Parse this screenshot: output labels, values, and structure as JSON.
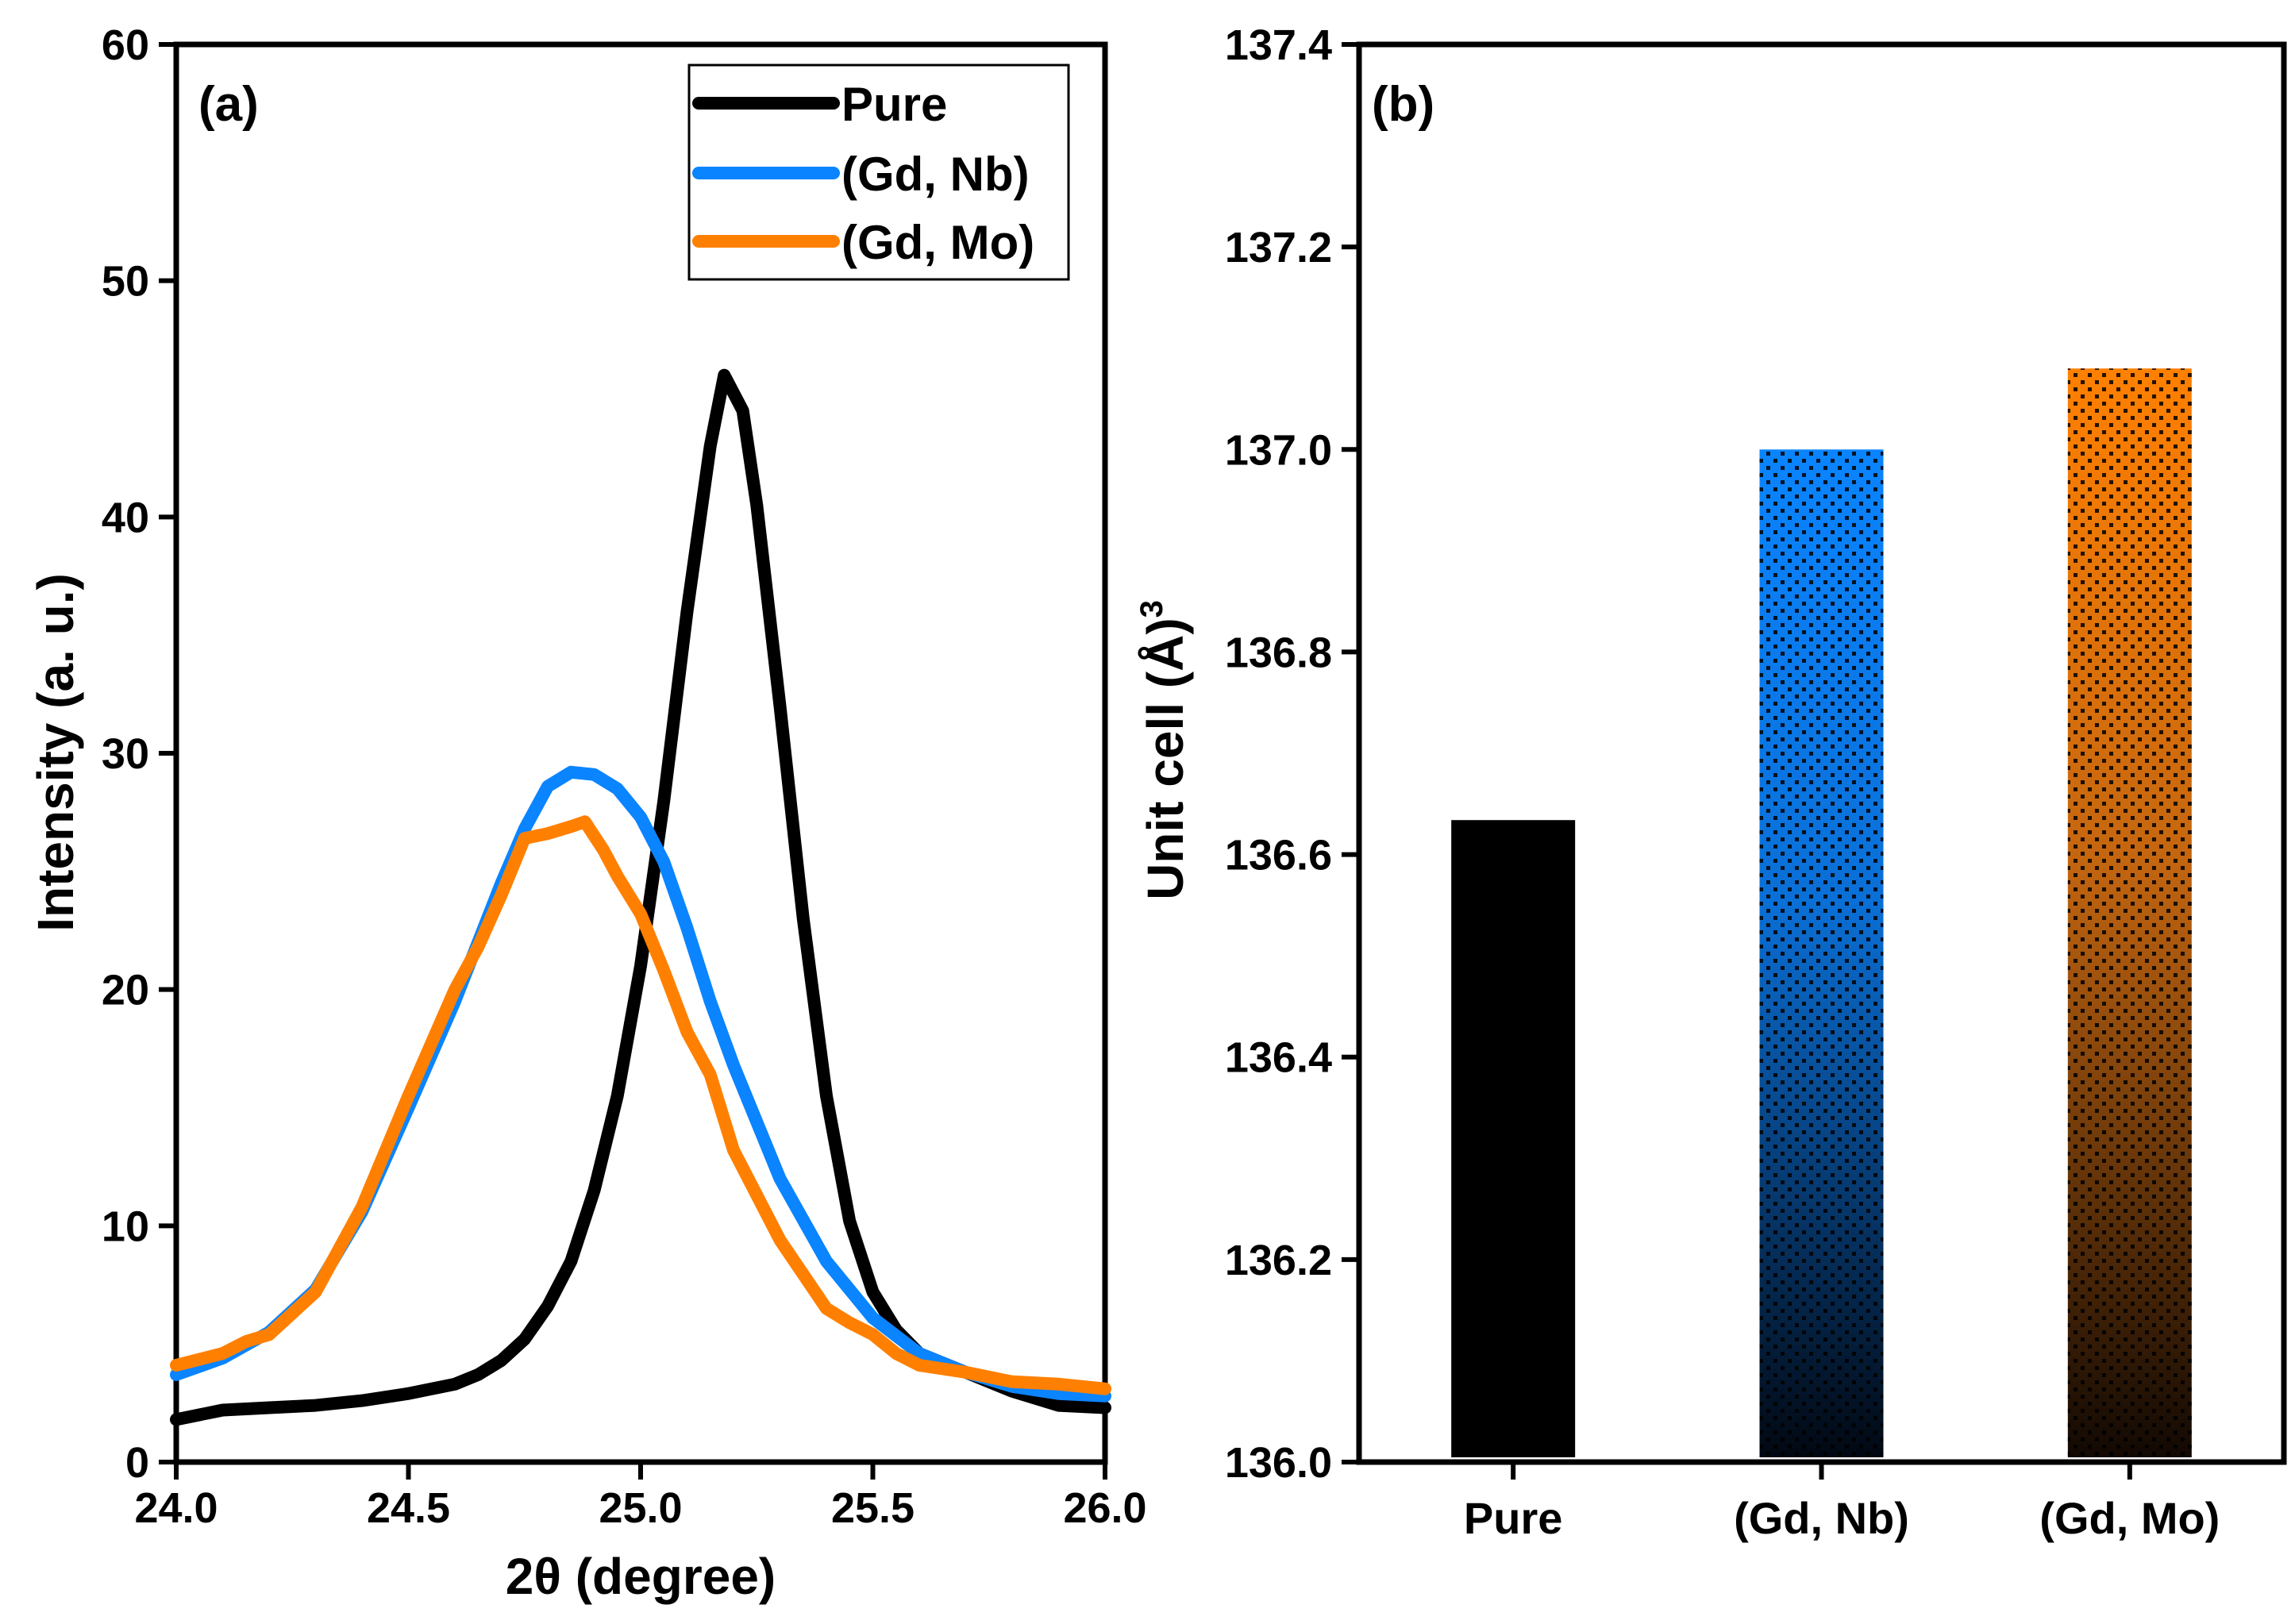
{
  "chart_data": [
    {
      "type": "line",
      "panel_label": "(a)",
      "xlabel": "2θ (degree)",
      "ylabel": "Intensity (a. u.)",
      "xlim": [
        24.0,
        26.0
      ],
      "ylim": [
        0,
        60
      ],
      "xticks": [
        "24.0",
        "24.5",
        "25.0",
        "25.5",
        "26.0"
      ],
      "yticks": [
        "0",
        "10",
        "20",
        "30",
        "40",
        "50",
        "60"
      ],
      "legend_position": "top-right",
      "series": [
        {
          "name": "Pure",
          "color": "#000000",
          "x": [
            24.0,
            24.1,
            24.2,
            24.3,
            24.4,
            24.5,
            24.6,
            24.65,
            24.7,
            24.75,
            24.8,
            24.85,
            24.9,
            24.95,
            25.0,
            25.05,
            25.1,
            25.15,
            25.18,
            25.22,
            25.25,
            25.3,
            25.35,
            25.4,
            25.45,
            25.5,
            25.55,
            25.6,
            25.7,
            25.8,
            25.9,
            26.0
          ],
          "y": [
            1.8,
            2.2,
            2.3,
            2.4,
            2.6,
            2.9,
            3.3,
            3.7,
            4.3,
            5.2,
            6.6,
            8.5,
            11.5,
            15.5,
            21.0,
            28.0,
            36.0,
            43.0,
            46.0,
            44.5,
            40.5,
            32.0,
            23.0,
            15.5,
            10.2,
            7.2,
            5.6,
            4.6,
            3.8,
            3.0,
            2.4,
            2.3
          ]
        },
        {
          "name": "(Gd, Nb)",
          "color": "#0A84FF",
          "x": [
            24.0,
            24.1,
            24.2,
            24.3,
            24.4,
            24.5,
            24.6,
            24.7,
            24.75,
            24.8,
            24.85,
            24.9,
            24.95,
            25.0,
            25.05,
            25.1,
            25.15,
            25.2,
            25.3,
            25.4,
            25.5,
            25.6,
            25.7,
            25.8,
            25.9,
            26.0
          ],
          "y": [
            3.7,
            4.4,
            5.5,
            7.3,
            10.6,
            15.0,
            19.5,
            24.5,
            26.8,
            28.6,
            29.2,
            29.1,
            28.5,
            27.3,
            25.4,
            22.6,
            19.5,
            16.8,
            12.0,
            8.5,
            6.1,
            4.6,
            3.8,
            3.2,
            2.9,
            2.8
          ]
        },
        {
          "name": "(Gd, Mo)",
          "color": "#FF8000",
          "x": [
            24.0,
            24.1,
            24.15,
            24.2,
            24.3,
            24.4,
            24.5,
            24.6,
            24.65,
            24.7,
            24.75,
            24.8,
            24.85,
            24.88,
            24.92,
            24.95,
            25.0,
            25.05,
            25.1,
            25.15,
            25.2,
            25.3,
            25.4,
            25.45,
            25.5,
            25.55,
            25.6,
            25.7,
            25.8,
            25.9,
            26.0
          ],
          "y": [
            4.1,
            4.6,
            5.1,
            5.4,
            7.2,
            10.8,
            15.5,
            20.0,
            21.8,
            24.0,
            26.4,
            26.6,
            26.9,
            27.1,
            25.9,
            24.8,
            23.2,
            20.8,
            18.2,
            16.4,
            13.2,
            9.4,
            6.5,
            5.9,
            5.4,
            4.6,
            4.1,
            3.8,
            3.4,
            3.3,
            3.1
          ]
        }
      ]
    },
    {
      "type": "bar",
      "panel_label": "(b)",
      "xlabel": "",
      "ylabel": "Unit cell (Å)",
      "ylabel_superscript": "3",
      "ylim": [
        136.0,
        137.4
      ],
      "yticks": [
        "136.0",
        "136.2",
        "136.4",
        "136.6",
        "136.8",
        "137.0",
        "137.2",
        "137.4"
      ],
      "categories": [
        "Pure",
        "(Gd, Nb)",
        "(Gd, Mo)"
      ],
      "values": [
        136.634,
        137.0,
        137.08
      ],
      "colors": [
        "#000000",
        "#0A84FF",
        "#FF8000"
      ]
    }
  ]
}
